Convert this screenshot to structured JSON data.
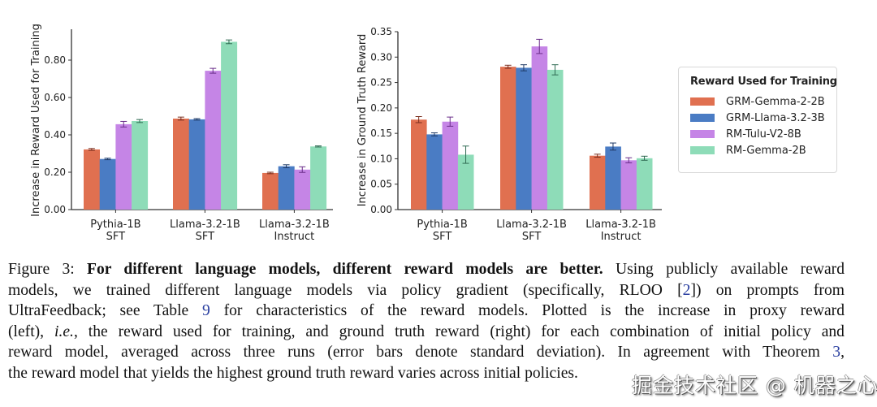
{
  "legend": {
    "title": "Reward Used for Training",
    "items": [
      {
        "label": "GRM-Gemma-2-2B",
        "color": "#e07050"
      },
      {
        "label": "GRM-Llama-3.2-3B",
        "color": "#4a7cc4"
      },
      {
        "label": "RM-Tulu-V2-8B",
        "color": "#c585e6"
      },
      {
        "label": "RM-Gemma-2B",
        "color": "#8edcb8"
      }
    ]
  },
  "chart_data": [
    {
      "type": "bar",
      "title": "",
      "xlabel": "",
      "ylabel": "Increase in Reward Used for Training",
      "ylim": [
        0,
        0.95
      ],
      "yticks": [
        0.0,
        0.2,
        0.4,
        0.6,
        0.8
      ],
      "ytick_labels": [
        "0.00",
        "0.20",
        "0.40",
        "0.60",
        "0.80"
      ],
      "grid": false,
      "categories": [
        [
          "Pythia-1B",
          "SFT"
        ],
        [
          "Llama-3.2-1B",
          "SFT"
        ],
        [
          "Llama-3.2-1B",
          "Instruct"
        ]
      ],
      "series": [
        {
          "name": "GRM-Gemma-2-2B",
          "values": [
            0.322,
            0.487,
            0.196
          ],
          "errors": [
            0.005,
            0.008,
            0.004
          ]
        },
        {
          "name": "GRM-Llama-3.2-3B",
          "values": [
            0.271,
            0.483,
            0.232
          ],
          "errors": [
            0.004,
            0.004,
            0.008
          ]
        },
        {
          "name": "RM-Tulu-V2-8B",
          "values": [
            0.457,
            0.743,
            0.214
          ],
          "errors": [
            0.015,
            0.013,
            0.015
          ]
        },
        {
          "name": "RM-Gemma-2B",
          "values": [
            0.474,
            0.898,
            0.338
          ],
          "errors": [
            0.008,
            0.01,
            0.003
          ]
        }
      ]
    },
    {
      "type": "bar",
      "title": "",
      "xlabel": "",
      "ylabel": "Increase in Ground Truth Reward",
      "ylim": [
        0,
        0.35
      ],
      "yticks": [
        0.0,
        0.05,
        0.1,
        0.15,
        0.2,
        0.25,
        0.3,
        0.35
      ],
      "ytick_labels": [
        "0.00",
        "0.05",
        "0.10",
        "0.15",
        "0.20",
        "0.25",
        "0.30",
        "0.35"
      ],
      "grid": false,
      "categories": [
        [
          "Pythia-1B",
          "SFT"
        ],
        [
          "Llama-3.2-1B",
          "SFT"
        ],
        [
          "Llama-3.2-1B",
          "Instruct"
        ]
      ],
      "series": [
        {
          "name": "GRM-Gemma-2-2B",
          "values": [
            0.177,
            0.281,
            0.106
          ],
          "errors": [
            0.006,
            0.003,
            0.003
          ]
        },
        {
          "name": "GRM-Llama-3.2-3B",
          "values": [
            0.148,
            0.279,
            0.124
          ],
          "errors": [
            0.003,
            0.006,
            0.007
          ]
        },
        {
          "name": "RM-Tulu-V2-8B",
          "values": [
            0.173,
            0.321,
            0.097
          ],
          "errors": [
            0.009,
            0.014,
            0.005
          ]
        },
        {
          "name": "RM-Gemma-2B",
          "values": [
            0.108,
            0.275,
            0.101
          ],
          "errors": [
            0.017,
            0.01,
            0.004
          ]
        }
      ]
    }
  ],
  "caption": {
    "lines": [
      {
        "segments": [
          {
            "text": "Figure 3: ",
            "style": "normal"
          },
          {
            "text": "For different language models, different reward models are better.",
            "style": "bold"
          },
          {
            "text": " Using publicly available reward",
            "style": "normal"
          }
        ]
      },
      {
        "segments": [
          {
            "text": "models, we trained different language models via policy gradient (specifically, RLOO [",
            "style": "normal"
          },
          {
            "text": "2",
            "style": "ref"
          },
          {
            "text": "]) on prompts from",
            "style": "normal"
          }
        ]
      },
      {
        "segments": [
          {
            "text": "UltraFeedback; see Table ",
            "style": "normal"
          },
          {
            "text": "9",
            "style": "ref"
          },
          {
            "text": " for characteristics of the reward models. Plotted is the increase in proxy reward",
            "style": "normal"
          }
        ]
      },
      {
        "segments": [
          {
            "text": "(left), ",
            "style": "normal"
          },
          {
            "text": "i.e.",
            "style": "italic"
          },
          {
            "text": ", the reward used for training, and ground truth reward (right) for each combination of initial policy and",
            "style": "normal"
          }
        ]
      },
      {
        "segments": [
          {
            "text": "reward model, averaged across three runs (error bars denote standard deviation). In agreement with Theorem ",
            "style": "normal"
          },
          {
            "text": "3",
            "style": "ref"
          },
          {
            "text": ",",
            "style": "normal"
          }
        ]
      },
      {
        "segments": [
          {
            "text": "the reward model that yields the highest ground truth reward varies across initial policies.",
            "style": "normal"
          }
        ]
      }
    ]
  },
  "watermark": "掘金技术社区 @ 机器之心"
}
